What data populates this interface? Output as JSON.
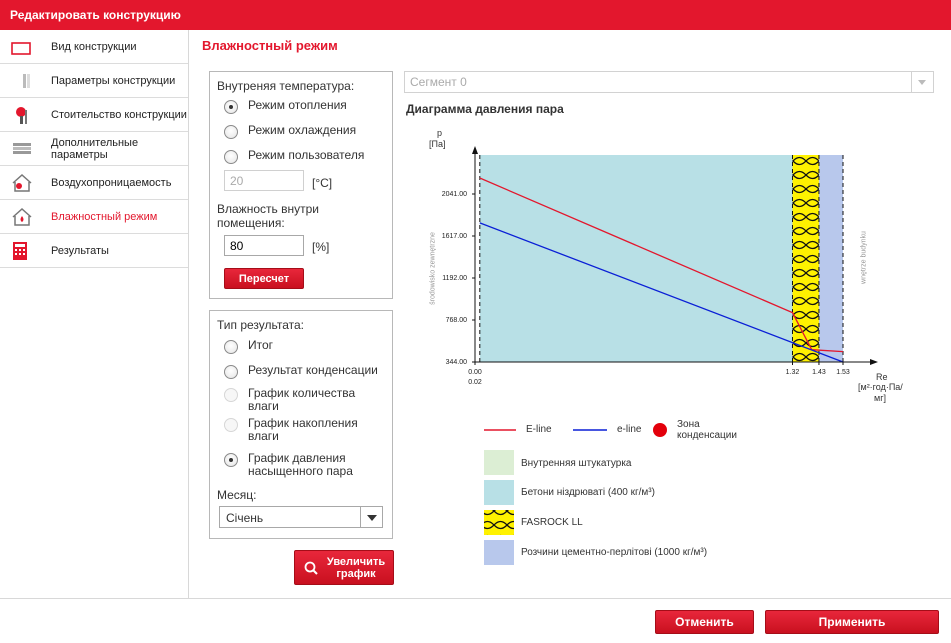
{
  "window": {
    "title": "Редактировать конструкцию"
  },
  "sidebar": {
    "items": [
      {
        "label": "Вид конструкции",
        "icon": "outline-wall-icon",
        "active": false
      },
      {
        "label": "Параметры конструкции",
        "icon": "layers-icon",
        "active": false
      },
      {
        "label": "Стоительство конструкции",
        "icon": "anchor-pin-icon",
        "active": false
      },
      {
        "label": "Дополнительные параметры",
        "icon": "stack-icon",
        "active": false
      },
      {
        "label": "Воздухопроницаемость",
        "icon": "house-air-icon",
        "active": false
      },
      {
        "label": "Влажностный режим",
        "icon": "house-drop-icon",
        "active": true
      },
      {
        "label": "Результаты",
        "icon": "calculator-icon",
        "active": false
      }
    ]
  },
  "main": {
    "heading": "Влажностный режим",
    "temperature": {
      "title": "Внутреняя температура:",
      "options": [
        {
          "label": "Режим отопления",
          "checked": true
        },
        {
          "label": "Режим охлаждения",
          "checked": false
        },
        {
          "label": "Режим пользователя",
          "checked": false
        }
      ],
      "value": "20",
      "unit": "[°C]"
    },
    "humidity": {
      "title": "Влажность внутри помещения:",
      "value": "80",
      "unit": "[%]"
    },
    "recalc_label": "Пересчет",
    "result_type": {
      "title": "Тип результата:",
      "options": [
        {
          "label": "Итог",
          "checked": false,
          "disabled": false
        },
        {
          "label": "Результат конденсации",
          "checked": false,
          "disabled": false
        },
        {
          "label": "График количества влаги",
          "checked": false,
          "disabled": true
        },
        {
          "label": "График накопления влаги",
          "checked": false,
          "disabled": true
        },
        {
          "label": "График давления насыщенного пара",
          "checked": true,
          "disabled": false
        }
      ],
      "month_label": "Месяц:",
      "month_value": "Січень"
    },
    "zoom_label": "Увеличить график",
    "segment": {
      "value": "Сегмент 0"
    },
    "diagram_title": "Диаграмма давления пара"
  },
  "chart_data": {
    "type": "line",
    "ylabel_top": "p",
    "ylabel_unit": "[Па]",
    "xlabel_top": "Re",
    "xlabel_unit": "[м²·год·Па/",
    "xlabel_unit2": "мг]",
    "left_side_label": "środowisko zewnętrzne",
    "right_side_label": "wnętrze budynku",
    "y_ticks": [
      "2041.00",
      "1617.00",
      "1192.00",
      "768.00",
      "344.00"
    ],
    "x_ticks_top": [
      "0.00",
      "1.32",
      "1.43",
      "1.53"
    ],
    "x_ticks_bottom": [
      "0.02"
    ],
    "ylim": [
      344,
      2466
    ],
    "xlim": [
      0,
      1.53
    ],
    "layers": [
      {
        "name": "Бетони ніздрюваті (400 кг/м³)",
        "from": 0.02,
        "to": 1.32,
        "color": "#b8e0e6"
      },
      {
        "name": "FASROCK LL",
        "from": 1.32,
        "to": 1.43,
        "color": "#fff200"
      },
      {
        "name": "Розчини цементно-перлітові (1000 кг/м³)",
        "from": 1.43,
        "to": 1.53,
        "color": "#b8c8ec"
      }
    ],
    "series": [
      {
        "name": "E-line",
        "color": "#e3172d",
        "x": [
          0.02,
          1.32,
          1.4,
          1.53
        ],
        "y": [
          2230,
          850,
          470,
          450
        ]
      },
      {
        "name": "e-line",
        "color": "#0a1fd6",
        "x": [
          0.02,
          1.53
        ],
        "y": [
          1770,
          344
        ]
      }
    ],
    "legend": {
      "e_line": "E-line",
      "e_line_lower": "e-line",
      "condensation": "Зона конденсации",
      "condensation_color": "#e3000b",
      "materials": [
        {
          "name": "Внутренняя штукатурка",
          "color": "#dceed4",
          "hatch": false
        },
        {
          "name": "Бетони ніздрюваті (400 кг/м³)",
          "color": "#b8e0e6",
          "hatch": false
        },
        {
          "name": "FASROCK LL",
          "color": "#fff200",
          "hatch": true
        },
        {
          "name": "Розчини цементно-перлітові (1000 кг/м³)",
          "color": "#b8c8ec",
          "hatch": false
        }
      ]
    }
  },
  "footer": {
    "cancel_label": "Отменить",
    "apply_label": "Применить"
  }
}
